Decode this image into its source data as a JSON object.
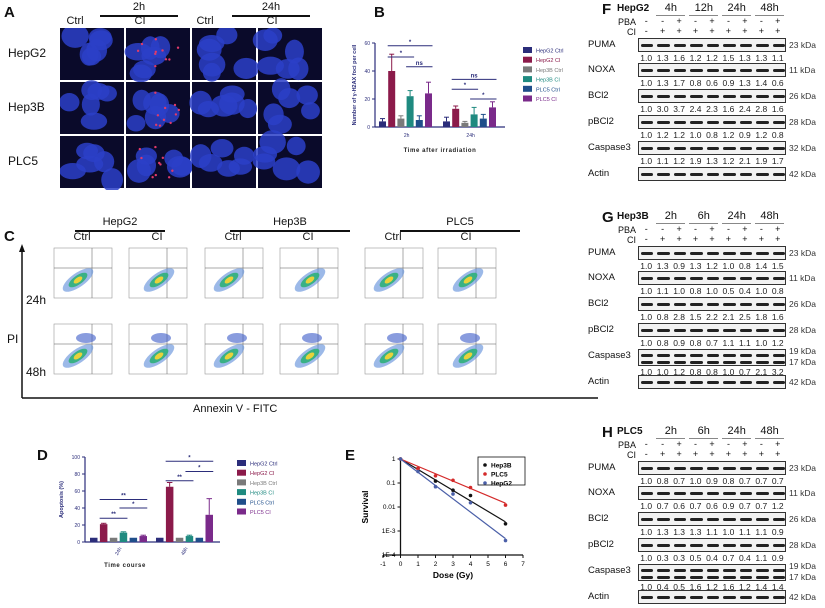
{
  "panelA": {
    "letter": "A",
    "times": [
      "2h",
      "24h"
    ],
    "conditions": [
      "Ctrl",
      "CI",
      "Ctrl",
      "CI"
    ],
    "rows": [
      "HepG2",
      "Hep3B",
      "PLC5"
    ]
  },
  "panelC": {
    "letter": "C",
    "groups": [
      "HepG2",
      "Hep3B",
      "PLC5"
    ],
    "conditions": [
      "Ctrl",
      "CI",
      "Ctrl",
      "CI",
      "Ctrl",
      "CI"
    ],
    "rows": [
      "24h",
      "48h"
    ],
    "yaxis": "PI",
    "xaxis": "Annexin V - FITC"
  },
  "legend_colors": {
    "HepG2 Ctrl": "#2b2d7a",
    "HepG2 CI": "#8b1a4a",
    "Hep3B Ctrl": "#7a7a7a",
    "Hep3B CI": "#1f8a80",
    "PLC5 Ctrl": "#1f4e8a",
    "PLC5 CI": "#7a2a8a"
  },
  "chart_data": [
    {
      "panel": "B",
      "type": "bar",
      "categories": [
        "2h",
        "24h"
      ],
      "series": [
        {
          "name": "HepG2 Ctrl",
          "values": [
            4,
            4
          ],
          "errors": [
            2,
            3
          ]
        },
        {
          "name": "HepG2 CI",
          "values": [
            40,
            13
          ],
          "errors": [
            12,
            2
          ]
        },
        {
          "name": "Hep3B Ctrl",
          "values": [
            6,
            3
          ],
          "errors": [
            2,
            1
          ]
        },
        {
          "name": "Hep3B CI",
          "values": [
            22,
            9
          ],
          "errors": [
            4,
            5
          ]
        },
        {
          "name": "PLC5 Ctrl",
          "values": [
            5,
            6
          ],
          "errors": [
            3,
            3
          ]
        },
        {
          "name": "PLC5 CI",
          "values": [
            24,
            14
          ],
          "errors": [
            8,
            4
          ]
        }
      ],
      "xlabel": "Time after irradiation",
      "ylabel": "Number of γ-H2AX foci per cell",
      "ylim": [
        0,
        60
      ],
      "yticks": [
        "0",
        "20",
        "40",
        "60"
      ],
      "annotations": [
        {
          "cat": 0,
          "from": 1,
          "to": 5,
          "text": "*",
          "level": 58
        },
        {
          "cat": 0,
          "from": 1,
          "to": 3,
          "text": "*",
          "level": 50
        },
        {
          "cat": 0,
          "from": 3,
          "to": 5,
          "text": "ns",
          "level": 43
        },
        {
          "cat": 1,
          "from": 1,
          "to": 5,
          "text": "ns",
          "level": 34
        },
        {
          "cat": 1,
          "from": 1,
          "to": 3,
          "text": "*",
          "level": 27
        },
        {
          "cat": 1,
          "from": 3,
          "to": 5,
          "text": "*",
          "level": 20
        }
      ],
      "legend": "right"
    },
    {
      "panel": "D",
      "type": "bar",
      "categories": [
        "24h",
        "48h"
      ],
      "series": [
        {
          "name": "HepG2 Ctrl",
          "values": [
            5,
            5
          ],
          "errors": [
            0,
            0
          ]
        },
        {
          "name": "HepG2 CI",
          "values": [
            21,
            65
          ],
          "errors": [
            1,
            5
          ]
        },
        {
          "name": "Hep3B Ctrl",
          "values": [
            5,
            5
          ],
          "errors": [
            0,
            0
          ]
        },
        {
          "name": "Hep3B CI",
          "values": [
            11,
            7
          ],
          "errors": [
            1,
            1
          ]
        },
        {
          "name": "PLC5 Ctrl",
          "values": [
            5,
            5
          ],
          "errors": [
            0,
            0
          ]
        },
        {
          "name": "PLC5 CI",
          "values": [
            7,
            32
          ],
          "errors": [
            1,
            19
          ]
        }
      ],
      "xlabel": "Time course",
      "ylabel": "Apoptosis (%)",
      "ylim": [
        0,
        100
      ],
      "yticks": [
        "0",
        "20",
        "40",
        "60",
        "80",
        "100"
      ],
      "annotations": [
        {
          "cat": 0,
          "from": 1,
          "to": 5,
          "text": "**",
          "level": 50
        },
        {
          "cat": 0,
          "from": 1,
          "to": 3,
          "text": "**",
          "level": 28
        },
        {
          "cat": 0,
          "from": 3,
          "to": 5,
          "text": "*",
          "level": 40
        },
        {
          "cat": 1,
          "from": 1,
          "to": 5,
          "text": "*",
          "level": 95
        },
        {
          "cat": 1,
          "from": 1,
          "to": 3,
          "text": "**",
          "level": 72
        },
        {
          "cat": 1,
          "from": 3,
          "to": 5,
          "text": "*",
          "level": 83
        }
      ],
      "legend": "right"
    },
    {
      "panel": "E",
      "type": "scatter",
      "x": [
        0,
        1,
        2,
        3,
        4,
        6
      ],
      "series": [
        {
          "name": "Hep3B",
          "color": "#111111",
          "values": [
            1,
            0.4,
            0.12,
            0.05,
            0.03,
            0.002
          ]
        },
        {
          "name": "PLC5",
          "color": "#d42a2a",
          "values": [
            1,
            0.4,
            0.2,
            0.13,
            0.065,
            0.012
          ]
        },
        {
          "name": "HepG2",
          "color": "#4a5fa8",
          "values": [
            1,
            0.3,
            0.07,
            0.035,
            0.015,
            0.0004
          ]
        }
      ],
      "xlabel": "Dose (Gy)",
      "ylabel": "Survival",
      "xlim": [
        -1,
        7
      ],
      "ylim": [
        0.0001,
        1
      ],
      "yscale": "log",
      "xticks": [
        "-1",
        "0",
        "1",
        "2",
        "3",
        "4",
        "5",
        "6",
        "7"
      ],
      "yticks": [
        "1E-4",
        "1E-3",
        "0.01",
        "0.1",
        "1"
      ],
      "legend": "top-right"
    }
  ],
  "blots": [
    {
      "letter": "F",
      "cell": "HepG2",
      "times": [
        "4h",
        "12h",
        "24h",
        "48h"
      ],
      "pba": [
        "-",
        "-",
        "+",
        "-",
        "+",
        "-",
        "+",
        "-",
        "+"
      ],
      "ci": [
        "-",
        "+",
        "+",
        "+",
        "+",
        "+",
        "+",
        "+",
        "+"
      ],
      "pba_label": "PBA",
      "ci_label": "CI",
      "rows": [
        {
          "name": "PUMA",
          "kda": [
            "23 kDa"
          ],
          "values": [
            "1.0",
            "1.3",
            "1.6",
            "1.2",
            "1.2",
            "1.5",
            "1.3",
            "1.3",
            "1.1"
          ]
        },
        {
          "name": "NOXA",
          "kda": [
            "11 kDa"
          ],
          "values": [
            "1.0",
            "1.3",
            "1.7",
            "0.8",
            "0.6",
            "0.9",
            "1.3",
            "1.4",
            "0.6"
          ]
        },
        {
          "name": "BCl2",
          "kda": [
            "26 kDa"
          ],
          "values": [
            "1.0",
            "3.0",
            "3.7",
            "2.4",
            "2.3",
            "1.6",
            "2.4",
            "2.8",
            "1.6"
          ]
        },
        {
          "name": "pBCl2",
          "kda": [
            "28 kDa"
          ],
          "values": [
            "1.0",
            "1.2",
            "1.2",
            "1.0",
            "0.8",
            "1.2",
            "0.9",
            "1.2",
            "0.8"
          ]
        },
        {
          "name": "Caspase3",
          "kda": [
            "32 kDa"
          ],
          "values": [
            "1.0",
            "1.1",
            "1.2",
            "1.9",
            "1.3",
            "1.2",
            "2.1",
            "1.9",
            "1.7"
          ]
        },
        {
          "name": "Actin",
          "kda": [
            "42 kDa"
          ],
          "values": []
        }
      ]
    },
    {
      "letter": "G",
      "cell": "Hep3B",
      "times": [
        "2h",
        "6h",
        "24h",
        "48h"
      ],
      "pba": [
        "-",
        "-",
        "+",
        "-",
        "+",
        "-",
        "+",
        "-",
        "+"
      ],
      "ci": [
        "-",
        "+",
        "+",
        "+",
        "+",
        "+",
        "+",
        "+",
        "+"
      ],
      "pba_label": "PBA",
      "ci_label": "CI",
      "rows": [
        {
          "name": "PUMA",
          "kda": [
            "23 kDa"
          ],
          "values": [
            "1.0",
            "1.3",
            "0.9",
            "1.3",
            "1.2",
            "1.0",
            "0.8",
            "1.4",
            "1.5"
          ]
        },
        {
          "name": "NOXA",
          "kda": [
            "11 kDa"
          ],
          "values": [
            "1.0",
            "1.1",
            "1.0",
            "0.8",
            "1.0",
            "0.5",
            "0.4",
            "1.0",
            "0.8"
          ]
        },
        {
          "name": "BCl2",
          "kda": [
            "26 kDa"
          ],
          "values": [
            "1.0",
            "0.8",
            "2.8",
            "1.5",
            "2.2",
            "2.1",
            "2.5",
            "1.8",
            "1.6"
          ]
        },
        {
          "name": "pBCl2",
          "kda": [
            "28 kDa"
          ],
          "values": [
            "1.0",
            "0.8",
            "0.9",
            "0.8",
            "0.7",
            "1.1",
            "1.1",
            "1.0",
            "1.2"
          ]
        },
        {
          "name": "Caspase3",
          "kda": [
            "19 kDa",
            "17 kDa"
          ],
          "values": [
            "1.0",
            "1.0",
            "1.2",
            "0.8",
            "0.8",
            "1.0",
            "0.7",
            "2.1",
            "3.2"
          ]
        },
        {
          "name": "Actin",
          "kda": [
            "42 kDa"
          ],
          "values": []
        }
      ]
    },
    {
      "letter": "H",
      "cell": "PLC5",
      "times": [
        "2h",
        "6h",
        "24h",
        "48h"
      ],
      "pba": [
        "-",
        "-",
        "+",
        "-",
        "+",
        "-",
        "+",
        "-",
        "+"
      ],
      "ci": [
        "-",
        "+",
        "+",
        "+",
        "+",
        "+",
        "+",
        "+",
        "+"
      ],
      "pba_label": "PBA",
      "ci_label": "CI",
      "rows": [
        {
          "name": "PUMA",
          "kda": [
            "23 kDa"
          ],
          "values": [
            "1.0",
            "0.8",
            "0.7",
            "1.0",
            "0.9",
            "0.8",
            "0.7",
            "0.7",
            "0.7"
          ]
        },
        {
          "name": "NOXA",
          "kda": [
            "11 kDa"
          ],
          "values": [
            "1.0",
            "0.7",
            "0.6",
            "0.7",
            "0.6",
            "0.9",
            "0.7",
            "0.7",
            "1.2"
          ]
        },
        {
          "name": "BCl2",
          "kda": [
            "26 kDa"
          ],
          "values": [
            "1.0",
            "1.3",
            "1.3",
            "1.3",
            "1.1",
            "1.0",
            "1.1",
            "1.1",
            "0.9"
          ]
        },
        {
          "name": "pBCl2",
          "kda": [
            "28 kDa"
          ],
          "values": [
            "1.0",
            "0.3",
            "0.3",
            "0.5",
            "0.4",
            "0.7",
            "0.4",
            "1.1",
            "0.9"
          ]
        },
        {
          "name": "Caspase3",
          "kda": [
            "19 kDa",
            "17 kDa"
          ],
          "values": [
            "1.0",
            "0.4",
            "0.5",
            "1.6",
            "1.2",
            "1.6",
            "1.2",
            "1.4",
            "1.4"
          ]
        },
        {
          "name": "Actin",
          "kda": [
            "42 kDa"
          ],
          "values": []
        }
      ]
    }
  ]
}
